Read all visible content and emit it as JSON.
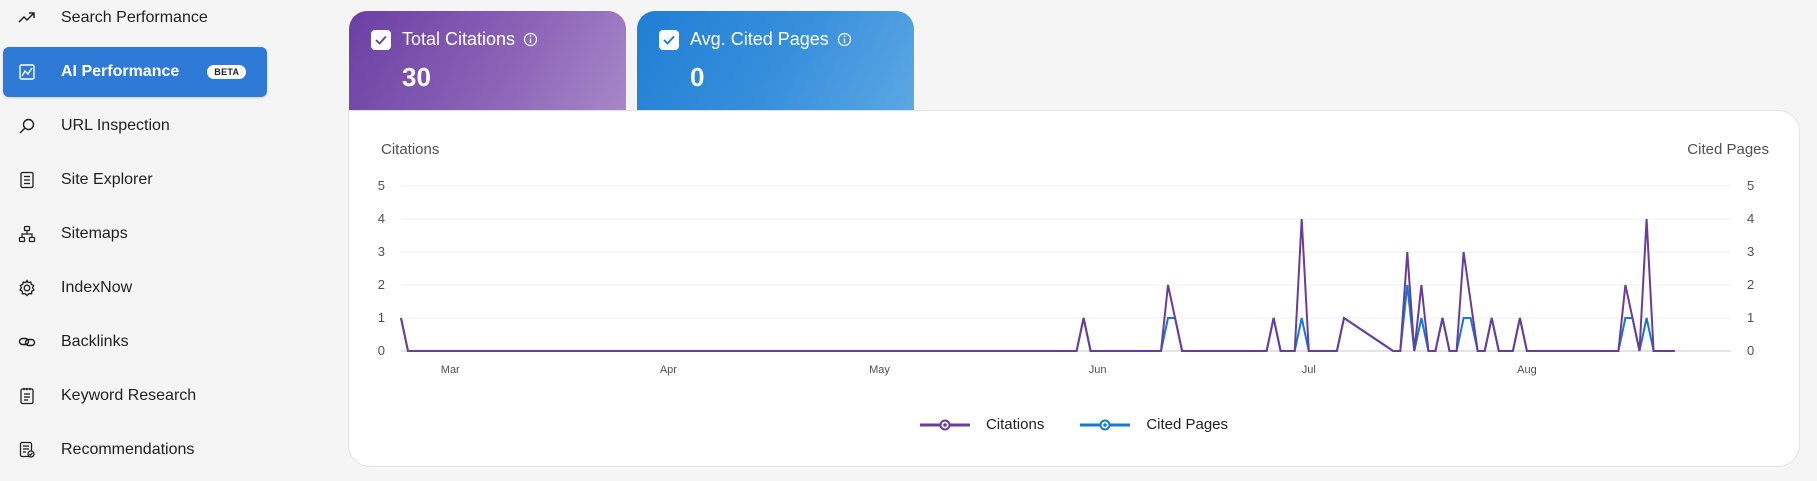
{
  "sidebar": {
    "items": [
      {
        "label": "Search Performance",
        "icon": "trending-up-icon"
      },
      {
        "label": "AI Performance",
        "icon": "chart-icon",
        "badge": "BETA",
        "active": true
      },
      {
        "label": "URL Inspection",
        "icon": "search-icon"
      },
      {
        "label": "Site Explorer",
        "icon": "document-list-icon"
      },
      {
        "label": "Sitemaps",
        "icon": "sitemap-icon"
      },
      {
        "label": "IndexNow",
        "icon": "gear-icon"
      },
      {
        "label": "Backlinks",
        "icon": "link-icon"
      },
      {
        "label": "Keyword Research",
        "icon": "notepad-icon"
      },
      {
        "label": "Recommendations",
        "icon": "checklist-icon"
      }
    ]
  },
  "cards": {
    "citations": {
      "label": "Total Citations",
      "value": "30",
      "checked": true
    },
    "cited_pages": {
      "label": "Avg. Cited Pages",
      "value": "0",
      "checked": true
    }
  },
  "chart": {
    "left_axis_title": "Citations",
    "right_axis_title": "Cited Pages",
    "legend": {
      "citations": "Citations",
      "cited_pages": "Cited Pages"
    }
  },
  "colors": {
    "citations": "#6a3d9a",
    "cited_pages": "#1479cf",
    "active_nav": "#2f7ad6"
  },
  "chart_data": {
    "type": "line",
    "x_start": "2025-02-22",
    "x_end": "2025-08-30",
    "x_ticks": [
      "Mar",
      "Apr",
      "May",
      "Jun",
      "Jul",
      "Aug"
    ],
    "x_tick_dates": [
      "2025-03-01",
      "2025-04-01",
      "2025-05-01",
      "2025-06-01",
      "2025-07-01",
      "2025-08-01"
    ],
    "ylim": [
      0,
      5
    ],
    "y_ticks": [
      0,
      1,
      2,
      3,
      4,
      5
    ],
    "y2lim": [
      0,
      5
    ],
    "y2_ticks": [
      0,
      1,
      2,
      3,
      4,
      5
    ],
    "series": [
      {
        "name": "Citations",
        "axis": "left",
        "points": [
          [
            "2025-02-22",
            1
          ],
          [
            "2025-02-23",
            0
          ],
          [
            "2025-05-29",
            0
          ],
          [
            "2025-05-30",
            1
          ],
          [
            "2025-05-31",
            0
          ],
          [
            "2025-06-10",
            0
          ],
          [
            "2025-06-11",
            2
          ],
          [
            "2025-06-13",
            0
          ],
          [
            "2025-06-25",
            0
          ],
          [
            "2025-06-26",
            1
          ],
          [
            "2025-06-27",
            0
          ],
          [
            "2025-06-29",
            0
          ],
          [
            "2025-06-30",
            4
          ],
          [
            "2025-07-01",
            0
          ],
          [
            "2025-07-05",
            0
          ],
          [
            "2025-07-06",
            1
          ],
          [
            "2025-07-13",
            0
          ],
          [
            "2025-07-14",
            0
          ],
          [
            "2025-07-15",
            3
          ],
          [
            "2025-07-16",
            0
          ],
          [
            "2025-07-17",
            2
          ],
          [
            "2025-07-18",
            0
          ],
          [
            "2025-07-19",
            0
          ],
          [
            "2025-07-20",
            1
          ],
          [
            "2025-07-21",
            0
          ],
          [
            "2025-07-22",
            0
          ],
          [
            "2025-07-23",
            3
          ],
          [
            "2025-07-25",
            0
          ],
          [
            "2025-07-26",
            0
          ],
          [
            "2025-07-27",
            1
          ],
          [
            "2025-07-28",
            0
          ],
          [
            "2025-07-30",
            0
          ],
          [
            "2025-07-31",
            1
          ],
          [
            "2025-08-01",
            0
          ],
          [
            "2025-08-14",
            0
          ],
          [
            "2025-08-15",
            2
          ],
          [
            "2025-08-16",
            1
          ],
          [
            "2025-08-17",
            0
          ],
          [
            "2025-08-18",
            4
          ],
          [
            "2025-08-19",
            0
          ],
          [
            "2025-08-22",
            0
          ]
        ]
      },
      {
        "name": "Cited Pages",
        "axis": "right",
        "points": [
          [
            "2025-02-22",
            1
          ],
          [
            "2025-02-23",
            0
          ],
          [
            "2025-05-29",
            0
          ],
          [
            "2025-05-30",
            1
          ],
          [
            "2025-05-31",
            0
          ],
          [
            "2025-06-10",
            0
          ],
          [
            "2025-06-11",
            1
          ],
          [
            "2025-06-12",
            1
          ],
          [
            "2025-06-13",
            0
          ],
          [
            "2025-06-25",
            0
          ],
          [
            "2025-06-26",
            1
          ],
          [
            "2025-06-27",
            0
          ],
          [
            "2025-06-29",
            0
          ],
          [
            "2025-06-30",
            1
          ],
          [
            "2025-07-01",
            0
          ],
          [
            "2025-07-05",
            0
          ],
          [
            "2025-07-06",
            1
          ],
          [
            "2025-07-13",
            0
          ],
          [
            "2025-07-14",
            0
          ],
          [
            "2025-07-15",
            2
          ],
          [
            "2025-07-16",
            0
          ],
          [
            "2025-07-17",
            1
          ],
          [
            "2025-07-18",
            0
          ],
          [
            "2025-07-19",
            0
          ],
          [
            "2025-07-20",
            1
          ],
          [
            "2025-07-21",
            0
          ],
          [
            "2025-07-22",
            0
          ],
          [
            "2025-07-23",
            1
          ],
          [
            "2025-07-24",
            1
          ],
          [
            "2025-07-25",
            0
          ],
          [
            "2025-07-26",
            0
          ],
          [
            "2025-07-27",
            1
          ],
          [
            "2025-07-28",
            0
          ],
          [
            "2025-07-30",
            0
          ],
          [
            "2025-07-31",
            1
          ],
          [
            "2025-08-01",
            0
          ],
          [
            "2025-08-14",
            0
          ],
          [
            "2025-08-15",
            1
          ],
          [
            "2025-08-16",
            1
          ],
          [
            "2025-08-17",
            0
          ],
          [
            "2025-08-18",
            1
          ],
          [
            "2025-08-19",
            0
          ],
          [
            "2025-08-22",
            0
          ]
        ]
      }
    ]
  }
}
